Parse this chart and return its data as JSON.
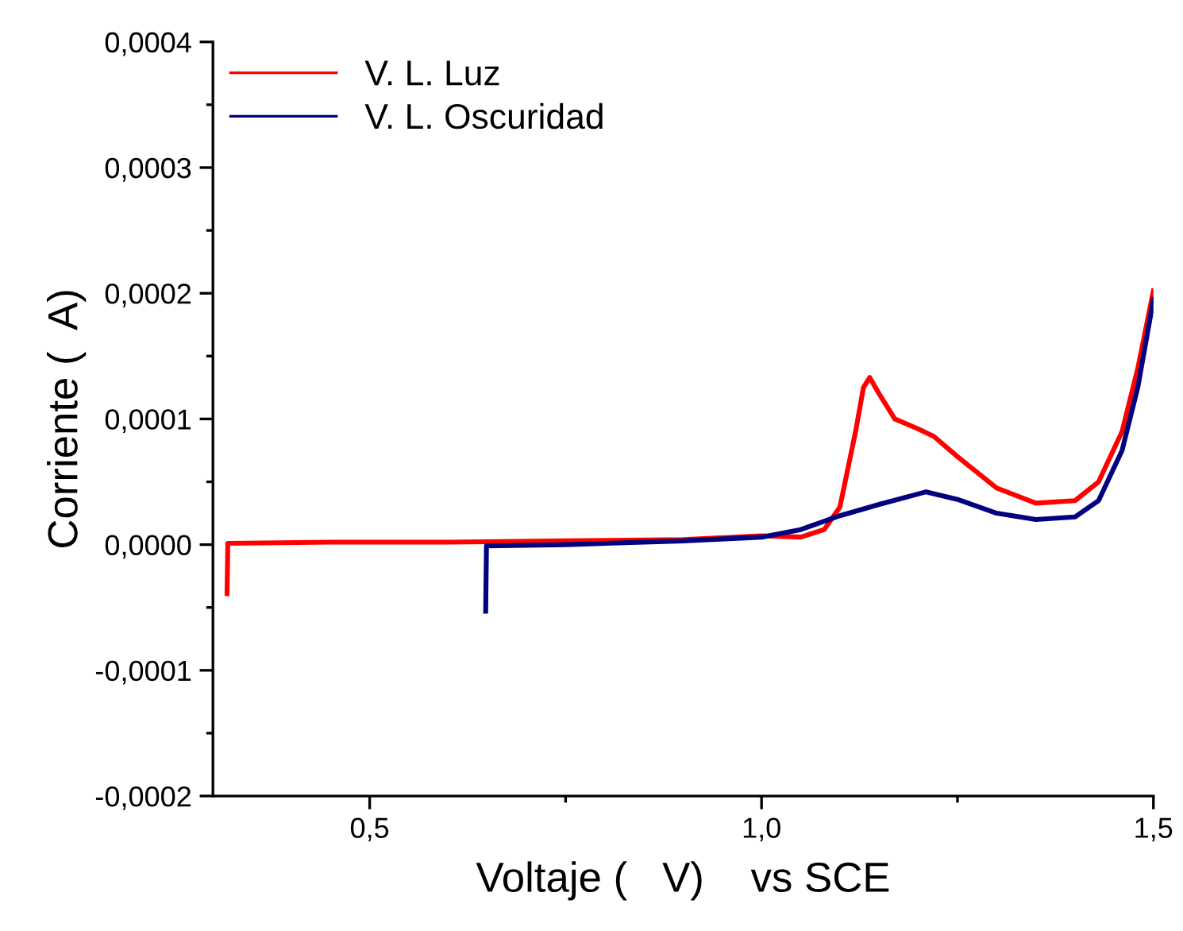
{
  "chart_data": {
    "type": "line",
    "xlabel": "Voltaje (   V)    vs SCE",
    "ylabel": "Corriente (  A)",
    "series": [
      {
        "name": "V. L. Luz",
        "color": "#ff0000",
        "x": [
          0.318,
          0.319,
          0.45,
          0.6,
          0.75,
          0.9,
          1.0,
          1.05,
          1.08,
          1.1,
          1.12,
          1.13,
          1.138,
          1.15,
          1.17,
          1.2,
          1.22,
          1.25,
          1.3,
          1.35,
          1.4,
          1.43,
          1.46,
          1.48,
          1.5
        ],
        "values": [
          -3.9e-05,
          1e-06,
          2e-06,
          2e-06,
          3e-06,
          4e-06,
          7e-06,
          6e-06,
          1.2e-05,
          3e-05,
          9e-05,
          0.000125,
          0.000133,
          0.00012,
          0.0001,
          9.2e-05,
          8.6e-05,
          7e-05,
          4.5e-05,
          3.3e-05,
          3.5e-05,
          5e-05,
          9e-05,
          0.00014,
          0.000202
        ]
      },
      {
        "name": "V. L. Oscuridad",
        "color": "#000080",
        "x": [
          0.648,
          0.649,
          0.75,
          0.9,
          1.0,
          1.05,
          1.1,
          1.15,
          1.21,
          1.25,
          1.3,
          1.35,
          1.4,
          1.43,
          1.46,
          1.48,
          1.5
        ],
        "values": [
          -5.3e-05,
          -1e-06,
          0.0,
          3e-06,
          6e-06,
          1.2e-05,
          2.3e-05,
          3.2e-05,
          4.2e-05,
          3.6e-05,
          2.5e-05,
          2e-05,
          2.2e-05,
          3.5e-05,
          7.5e-05,
          0.000125,
          0.000195
        ]
      }
    ],
    "xlim": [
      0.3,
      1.5
    ],
    "ylim": [
      -0.0002,
      0.0004
    ],
    "xticks": [
      {
        "value": 0.5,
        "label": "0,5"
      },
      {
        "value": 0.75,
        "label": null
      },
      {
        "value": 1.0,
        "label": "1,0"
      },
      {
        "value": 1.25,
        "label": null
      },
      {
        "value": 1.5,
        "label": "1,5"
      }
    ],
    "yticks": [
      {
        "value": -0.0002,
        "label": "-0,0002"
      },
      {
        "value": -0.00015,
        "label": null
      },
      {
        "value": -0.0001,
        "label": "-0,0001"
      },
      {
        "value": -5e-05,
        "label": null
      },
      {
        "value": 0,
        "label": "0,0000"
      },
      {
        "value": 5e-05,
        "label": null
      },
      {
        "value": 0.0001,
        "label": "0,0001"
      },
      {
        "value": 0.00015,
        "label": null
      },
      {
        "value": 0.0002,
        "label": "0,0002"
      },
      {
        "value": 0.00025,
        "label": null
      },
      {
        "value": 0.0003,
        "label": "0,0003"
      },
      {
        "value": 0.00035,
        "label": null
      },
      {
        "value": 0.0004,
        "label": "0,0004"
      }
    ],
    "grid": false,
    "legend": "top left",
    "marker": "none",
    "line_style": "solid"
  }
}
